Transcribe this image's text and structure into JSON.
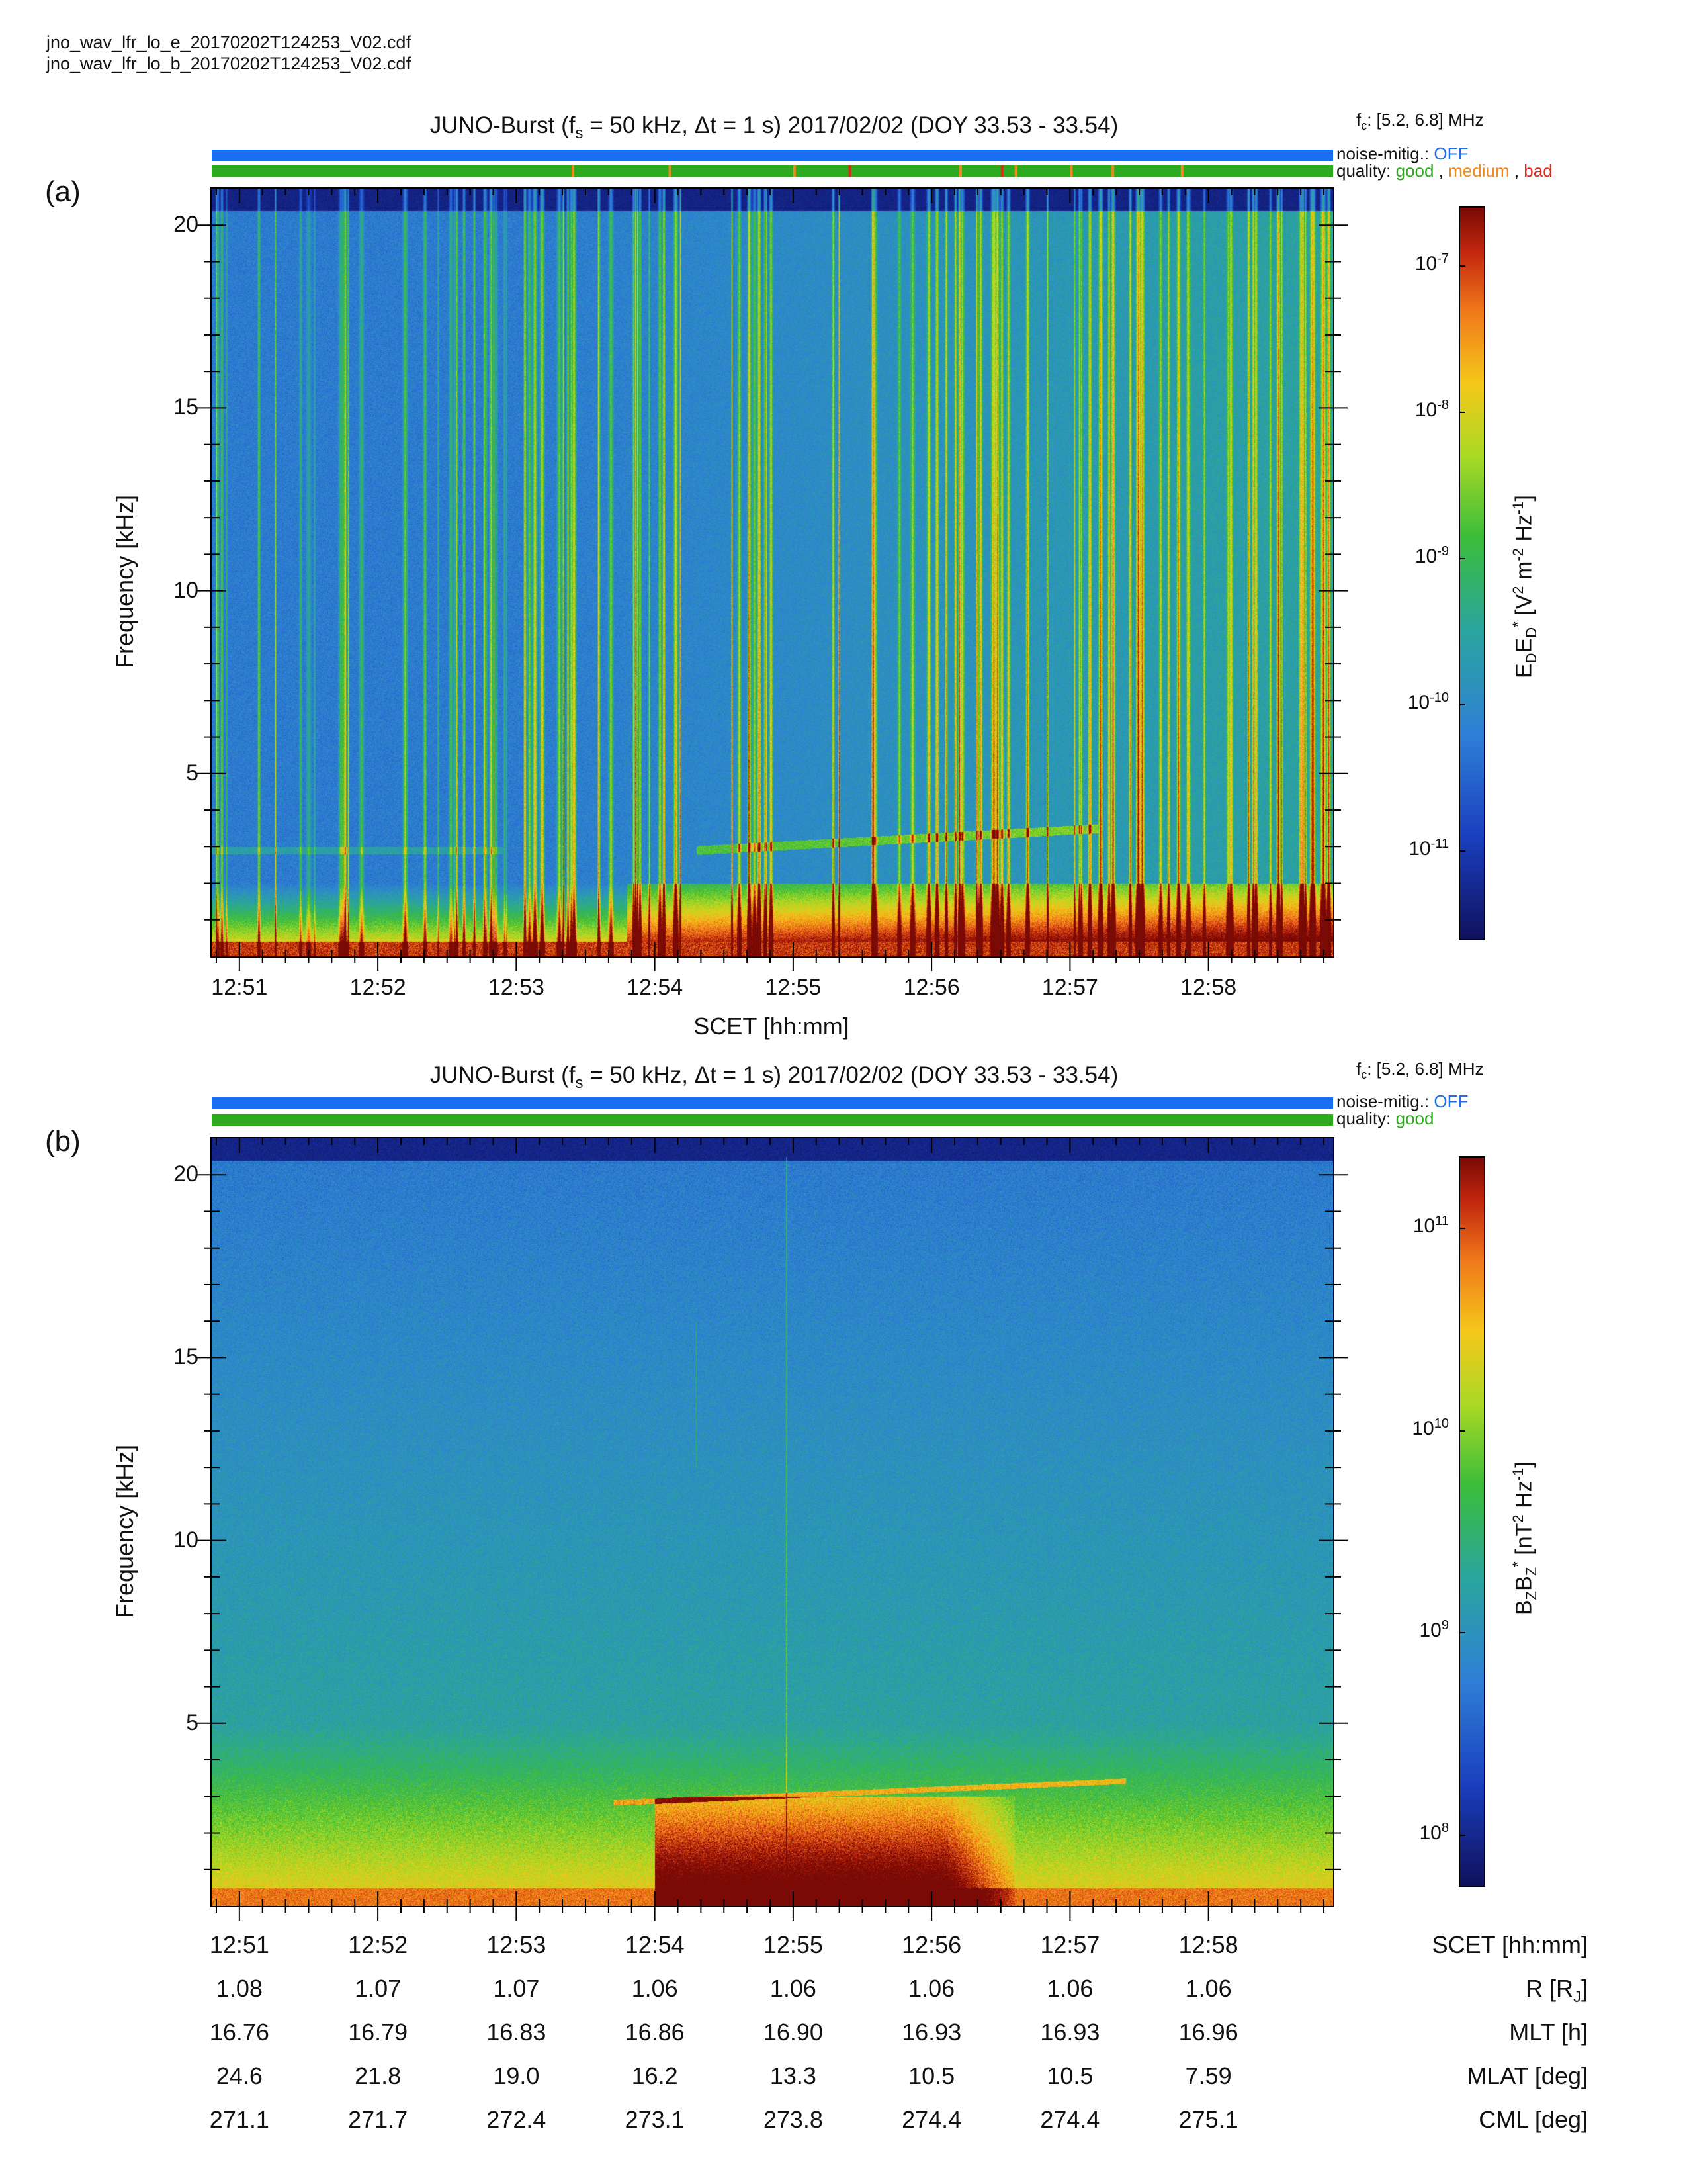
{
  "files": [
    "jno_wav_lfr_lo_e_20170202T124253_V02.cdf",
    "jno_wav_lfr_lo_b_20170202T124253_V02.cdf"
  ],
  "colors": {
    "noise_bar": "#1a6ef0",
    "good": "#2eaa1f",
    "medium": "#f08a1c",
    "bad": "#e0281f"
  },
  "chart_data": [
    {
      "type": "heatmap",
      "panel_label": "(a)",
      "title_prefix": "JUNO-Burst (f",
      "title_sub": "s",
      "title_rest": " = 50 kHz, Δt = 1 s)  2017/02/02 (DOY 33.53 - 33.54)",
      "fc_prefix": "f",
      "fc_sub": "c",
      "fc_rest": ": [5.2, 6.8] MHz",
      "noise_label": "noise-mitig.:",
      "noise_value": "OFF",
      "quality_label": "quality:",
      "quality_values": [
        "good",
        "medium",
        "bad"
      ],
      "quality_flags": [
        {
          "time": "12:53.4",
          "level": "medium"
        },
        {
          "time": "12:54.1",
          "level": "medium"
        },
        {
          "time": "12:55.0",
          "level": "medium"
        },
        {
          "time": "12:55.4",
          "level": "bad"
        },
        {
          "time": "12:56.2",
          "level": "medium"
        },
        {
          "time": "12:56.5",
          "level": "bad"
        },
        {
          "time": "12:56.6",
          "level": "medium"
        },
        {
          "time": "12:57.0",
          "level": "medium"
        },
        {
          "time": "12:57.3",
          "level": "medium"
        },
        {
          "time": "12:57.8",
          "level": "medium"
        }
      ],
      "ylabel": "Frequency [kHz]",
      "xlabel": "SCET [hh:mm]",
      "yticks": [
        "5",
        "10",
        "15",
        "20"
      ],
      "xticks": [
        "12:51",
        "12:52",
        "12:53",
        "12:54",
        "12:55",
        "12:56",
        "12:57",
        "12:58"
      ],
      "ylim": [
        0,
        21
      ],
      "colorbar": {
        "label": "E_D E_D* [V^2 m^-2 Hz^-1]",
        "ticks": [
          "10",
          "10",
          "10",
          "10",
          "10"
        ],
        "tick_exponents": [
          "-7",
          "-8",
          "-9",
          "-10",
          "-11"
        ],
        "range_log10": [
          -11.6,
          -6.6
        ]
      },
      "features": {
        "strong_low_frequency_emission_khz": [
          0,
          2
        ],
        "band_khz_start_end": [
          2.9,
          3.5
        ],
        "band_time_range": [
          "12:54.3",
          "12:57.2"
        ]
      }
    },
    {
      "type": "heatmap",
      "panel_label": "(b)",
      "title_prefix": "JUNO-Burst (f",
      "title_sub": "s",
      "title_rest": " = 50 kHz, Δt = 1 s)  2017/02/02 (DOY 33.53 - 33.54)",
      "fc_prefix": "f",
      "fc_sub": "c",
      "fc_rest": ": [5.2, 6.8] MHz",
      "noise_label": "noise-mitig.:",
      "noise_value": "OFF",
      "quality_label": "quality:",
      "quality_values": [
        "good"
      ],
      "ylabel": "Frequency [kHz]",
      "yticks": [
        "5",
        "10",
        "15",
        "20"
      ],
      "xticks": [
        "12:51",
        "12:52",
        "12:53",
        "12:54",
        "12:55",
        "12:56",
        "12:57",
        "12:58"
      ],
      "ylim": [
        0,
        21
      ],
      "colorbar": {
        "label": "B_Z B_Z* [nT^2 Hz^-1]",
        "ticks": [
          "10",
          "10",
          "10",
          "10"
        ],
        "tick_exponents": [
          "11",
          "10",
          "9",
          "8"
        ],
        "range_log10": [
          7.75,
          11.35
        ]
      },
      "features": {
        "band_khz_start_end": [
          2.9,
          3.5
        ],
        "band_time_range": [
          "12:53.7",
          "12:57.4"
        ],
        "intense_region_time_range": [
          "12:54.0",
          "12:56.6"
        ]
      }
    }
  ],
  "ephemeris": {
    "rows": [
      {
        "label": "SCET [hh:mm]",
        "values": [
          "12:51",
          "12:52",
          "12:53",
          "12:54",
          "12:55",
          "12:56",
          "12:57",
          "12:58"
        ]
      },
      {
        "label_main": "R [R",
        "label_sub": "J",
        "label_end": "]",
        "values": [
          "1.08",
          "1.07",
          "1.07",
          "1.06",
          "1.06",
          "1.06",
          "1.06",
          "1.06"
        ]
      },
      {
        "label": "MLT [h]",
        "values": [
          "16.76",
          "16.79",
          "16.83",
          "16.86",
          "16.90",
          "16.93",
          "16.93",
          "16.96"
        ]
      },
      {
        "label": "MLAT [deg]",
        "values": [
          "24.6",
          "21.8",
          "19.0",
          "16.2",
          "13.3",
          "10.5",
          "10.5",
          "7.59"
        ]
      },
      {
        "label": "CML [deg]",
        "values": [
          "271.1",
          "271.7",
          "272.4",
          "273.1",
          "273.8",
          "274.4",
          "274.4",
          "275.1"
        ]
      }
    ]
  }
}
